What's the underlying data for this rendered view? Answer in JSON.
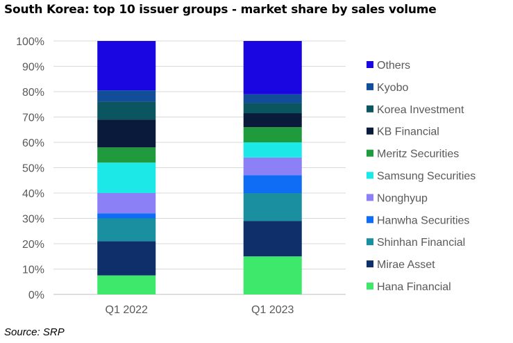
{
  "title": "South Korea: top 10 issuer groups - market share by sales volume",
  "source": "Source: SRP",
  "chart_data": {
    "type": "bar",
    "stacked": true,
    "categories": [
      "Q1 2022",
      "Q1 2023"
    ],
    "y_ticks": [
      "0%",
      "10%",
      "20%",
      "30%",
      "40%",
      "50%",
      "60%",
      "70%",
      "80%",
      "90%",
      "100%"
    ],
    "ylim": [
      0,
      100
    ],
    "legend_position": "right",
    "series": [
      {
        "name": "Hana Financial",
        "color": "#3ee86a",
        "values": [
          7.5,
          15
        ]
      },
      {
        "name": "Mirae Asset",
        "color": "#0f2f6b",
        "values": [
          13.5,
          14
        ]
      },
      {
        "name": "Shinhan Financial",
        "color": "#1a8fa0",
        "values": [
          9,
          11
        ]
      },
      {
        "name": "Hanwha Securities",
        "color": "#0f6df5",
        "values": [
          2,
          7
        ]
      },
      {
        "name": "Nonghyup",
        "color": "#8b80f5",
        "values": [
          8,
          7
        ]
      },
      {
        "name": "Samsung Securities",
        "color": "#1de8e8",
        "values": [
          12,
          6
        ]
      },
      {
        "name": "Meritz Securities",
        "color": "#1f9a3c",
        "values": [
          6,
          6
        ]
      },
      {
        "name": "KB Financial",
        "color": "#0a1a3a",
        "values": [
          11,
          5.5
        ]
      },
      {
        "name": "Korea Investment",
        "color": "#0b5560",
        "values": [
          7,
          4
        ]
      },
      {
        "name": "Kyobo",
        "color": "#124d9a",
        "values": [
          4.5,
          3.5
        ]
      },
      {
        "name": "Others",
        "color": "#1a06e0",
        "values": [
          19.5,
          21
        ]
      }
    ]
  }
}
